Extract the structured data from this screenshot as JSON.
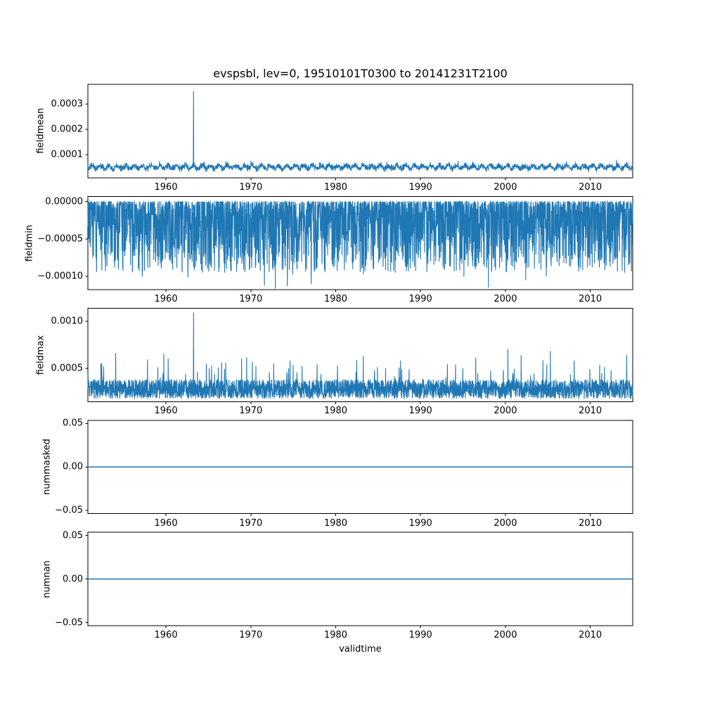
{
  "figure": {
    "title": "evspsbl, lev=0, 19510101T0300 to 20141231T2100",
    "xlabel": "validtime",
    "line_color": "#1f77b4",
    "background_color": "#ffffff",
    "num_subplots": 5
  },
  "chart_data": [
    {
      "type": "line",
      "ylabel": "fieldmean",
      "xlim": [
        1950.8,
        2015.0
      ],
      "xticks": [
        "1960",
        "1970",
        "1980",
        "1990",
        "2000",
        "2010"
      ],
      "ylim": [
        1e-05,
        0.000377
      ],
      "yticks": [
        {
          "v": 0.0003,
          "label": "0.0003"
        },
        {
          "v": 0.0002,
          "label": "0.0002"
        },
        {
          "v": 0.0001,
          "label": "0.0001"
        }
      ],
      "grid": false,
      "legend": false,
      "series": {
        "gen": "band",
        "seed": 11,
        "n": 2600,
        "base": 5.2e-05,
        "noise": 1.4e-05,
        "seasonal_amp": 6e-06,
        "tail": 1.8e-05,
        "tail_p": 0.02,
        "spikes": [
          {
            "x": 1963.25,
            "v": 0.00035
          }
        ]
      }
    },
    {
      "type": "line",
      "ylabel": "fieldmin",
      "xlim": [
        1950.8,
        2015.0
      ],
      "xticks": [
        "1960",
        "1970",
        "1980",
        "1990",
        "2000",
        "2010"
      ],
      "ylim": [
        -0.000118,
        7e-06
      ],
      "yticks": [
        {
          "v": 0.0,
          "label": "0.00000"
        },
        {
          "v": -5e-05,
          "label": "−0.00005"
        },
        {
          "v": -0.0001,
          "label": "−0.00010"
        }
      ],
      "grid": false,
      "legend": false,
      "series": {
        "gen": "neg",
        "seed": 22,
        "n": 3000,
        "dense": 9.5e-05,
        "pow": 2.2,
        "tail": 1.8e-05,
        "tail_p": 0.012,
        "spikes": [
          {
            "x": 1957.2,
            "v": -0.0001
          },
          {
            "x": 1962.6,
            "v": -0.000101
          },
          {
            "x": 1971.6,
            "v": -0.000112
          },
          {
            "x": 1972.9,
            "v": -0.000116
          },
          {
            "x": 1974.3,
            "v": -0.000113
          },
          {
            "x": 1977.1,
            "v": -0.00011
          },
          {
            "x": 1998.0,
            "v": -0.000115
          },
          {
            "x": 2002.4,
            "v": -0.000105
          },
          {
            "x": 2004.8,
            "v": -0.0001
          }
        ]
      }
    },
    {
      "type": "line",
      "ylabel": "fieldmax",
      "xlim": [
        1950.8,
        2015.0
      ],
      "xticks": [
        "1960",
        "1970",
        "1980",
        "1990",
        "2000",
        "2010"
      ],
      "ylim": [
        0.000146,
        0.001137
      ],
      "yticks": [
        {
          "v": 0.001,
          "label": "0.0010"
        },
        {
          "v": 0.0005,
          "label": "0.0005"
        }
      ],
      "grid": false,
      "legend": false,
      "series": {
        "gen": "pos",
        "seed": 33,
        "n": 3000,
        "base": 0.00028,
        "dense": 0.0002,
        "tail": 0.0003,
        "tail_p": 0.035,
        "spikes": [
          {
            "x": 1963.25,
            "v": 0.00109
          },
          {
            "x": 1968.9,
            "v": 0.0006
          },
          {
            "x": 1996.5,
            "v": 0.00061
          },
          {
            "x": 2000.3,
            "v": 0.0007
          },
          {
            "x": 2005.3,
            "v": 0.00068
          },
          {
            "x": 2008.1,
            "v": 0.00058
          }
        ]
      }
    },
    {
      "type": "line",
      "ylabel": "nummasked",
      "xlim": [
        1950.8,
        2015.0
      ],
      "xticks": [
        "1960",
        "1970",
        "1980",
        "1990",
        "2000",
        "2010"
      ],
      "ylim": [
        -0.0536,
        0.0536
      ],
      "yticks": [
        {
          "v": 0.05,
          "label": "0.05"
        },
        {
          "v": 0.0,
          "label": "0.00"
        },
        {
          "v": -0.05,
          "label": "−0.05"
        }
      ],
      "grid": false,
      "legend": false,
      "series": {
        "gen": "flat",
        "value": 0,
        "n": 2,
        "spikes": []
      }
    },
    {
      "type": "line",
      "ylabel": "numnan",
      "xlim": [
        1950.8,
        2015.0
      ],
      "xticks": [
        "1960",
        "1970",
        "1980",
        "1990",
        "2000",
        "2010"
      ],
      "ylim": [
        -0.0536,
        0.0536
      ],
      "yticks": [
        {
          "v": 0.05,
          "label": "0.05"
        },
        {
          "v": 0.0,
          "label": "0.00"
        },
        {
          "v": -0.05,
          "label": "−0.05"
        }
      ],
      "grid": false,
      "legend": false,
      "series": {
        "gen": "flat",
        "value": 0,
        "n": 2,
        "spikes": []
      }
    }
  ]
}
